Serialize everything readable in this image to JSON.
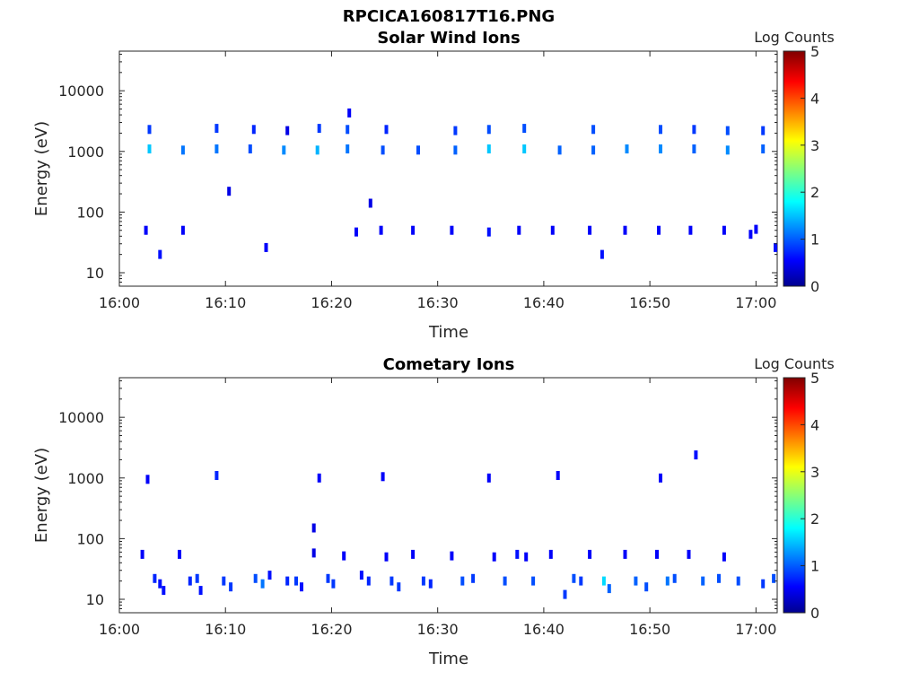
{
  "figure_title": "RPCICA160817T16.PNG",
  "chart_data": [
    {
      "type": "heatmap",
      "title": "Solar Wind Ions",
      "xlabel": "Time",
      "ylabel": "Energy (eV)",
      "y_scale": "log",
      "ylim": [
        6,
        45000
      ],
      "xlim": [
        "16:00",
        "17:02"
      ],
      "x_ticks": [
        "16:00",
        "16:10",
        "16:20",
        "16:30",
        "16:40",
        "16:50",
        "17:00"
      ],
      "y_ticks": [
        "10",
        "100",
        "1000",
        "10000"
      ],
      "colorbar": {
        "label": "Log Counts",
        "ticks": [
          "0",
          "1",
          "2",
          "3",
          "4",
          "5"
        ],
        "range": [
          0,
          5
        ],
        "colormap": "jet"
      },
      "grid": false,
      "points": [
        {
          "t": "16:02:50",
          "e": 1100,
          "v": 1.6
        },
        {
          "t": "16:02:50",
          "e": 2300,
          "v": 0.9
        },
        {
          "t": "16:02:30",
          "e": 50,
          "v": 0.6
        },
        {
          "t": "16:03:50",
          "e": 20,
          "v": 0.7
        },
        {
          "t": "16:06:00",
          "e": 1050,
          "v": 1.2
        },
        {
          "t": "16:06:00",
          "e": 50,
          "v": 0.6
        },
        {
          "t": "16:09:10",
          "e": 1100,
          "v": 1.2
        },
        {
          "t": "16:09:10",
          "e": 2400,
          "v": 0.9
        },
        {
          "t": "16:10:20",
          "e": 220,
          "v": 0.5
        },
        {
          "t": "16:12:20",
          "e": 1100,
          "v": 1.0
        },
        {
          "t": "16:12:40",
          "e": 2300,
          "v": 0.8
        },
        {
          "t": "16:13:50",
          "e": 26,
          "v": 0.6
        },
        {
          "t": "16:15:30",
          "e": 1050,
          "v": 1.3
        },
        {
          "t": "16:15:50",
          "e": 2200,
          "v": 0.5
        },
        {
          "t": "16:18:40",
          "e": 1050,
          "v": 1.5
        },
        {
          "t": "16:18:50",
          "e": 2400,
          "v": 0.9
        },
        {
          "t": "16:21:30",
          "e": 1100,
          "v": 1.2
        },
        {
          "t": "16:21:30",
          "e": 2300,
          "v": 1.0
        },
        {
          "t": "16:21:40",
          "e": 4300,
          "v": 0.6
        },
        {
          "t": "16:22:20",
          "e": 47,
          "v": 0.6
        },
        {
          "t": "16:23:40",
          "e": 140,
          "v": 0.5
        },
        {
          "t": "16:24:50",
          "e": 1050,
          "v": 1.0
        },
        {
          "t": "16:25:10",
          "e": 2300,
          "v": 0.8
        },
        {
          "t": "16:24:40",
          "e": 50,
          "v": 0.6
        },
        {
          "t": "16:27:40",
          "e": 50,
          "v": 0.6
        },
        {
          "t": "16:28:10",
          "e": 1050,
          "v": 1.0
        },
        {
          "t": "16:31:20",
          "e": 50,
          "v": 0.6
        },
        {
          "t": "16:31:40",
          "e": 1050,
          "v": 1.1
        },
        {
          "t": "16:31:40",
          "e": 2200,
          "v": 0.9
        },
        {
          "t": "16:34:50",
          "e": 1100,
          "v": 1.6
        },
        {
          "t": "16:34:50",
          "e": 2300,
          "v": 1.0
        },
        {
          "t": "16:34:50",
          "e": 47,
          "v": 0.7
        },
        {
          "t": "16:37:40",
          "e": 50,
          "v": 0.6
        },
        {
          "t": "16:38:10",
          "e": 1100,
          "v": 1.6
        },
        {
          "t": "16:38:10",
          "e": 2400,
          "v": 1.0
        },
        {
          "t": "16:40:50",
          "e": 50,
          "v": 0.6
        },
        {
          "t": "16:41:30",
          "e": 1050,
          "v": 1.1
        },
        {
          "t": "16:44:20",
          "e": 50,
          "v": 0.6
        },
        {
          "t": "16:44:40",
          "e": 1050,
          "v": 1.1
        },
        {
          "t": "16:44:40",
          "e": 2300,
          "v": 1.0
        },
        {
          "t": "16:45:30",
          "e": 20,
          "v": 0.7
        },
        {
          "t": "16:47:40",
          "e": 50,
          "v": 0.6
        },
        {
          "t": "16:47:50",
          "e": 1100,
          "v": 1.3
        },
        {
          "t": "16:50:50",
          "e": 50,
          "v": 0.6
        },
        {
          "t": "16:51:00",
          "e": 1100,
          "v": 1.3
        },
        {
          "t": "16:51:00",
          "e": 2300,
          "v": 1.0
        },
        {
          "t": "16:53:50",
          "e": 50,
          "v": 0.6
        },
        {
          "t": "16:54:10",
          "e": 1100,
          "v": 1.1
        },
        {
          "t": "16:54:10",
          "e": 2300,
          "v": 0.9
        },
        {
          "t": "16:57:00",
          "e": 50,
          "v": 0.6
        },
        {
          "t": "16:57:20",
          "e": 1050,
          "v": 1.3
        },
        {
          "t": "16:57:20",
          "e": 2200,
          "v": 1.0
        },
        {
          "t": "16:59:30",
          "e": 43,
          "v": 0.6
        },
        {
          "t": "17:00:00",
          "e": 52,
          "v": 0.6
        },
        {
          "t": "17:00:40",
          "e": 1100,
          "v": 1.1
        },
        {
          "t": "17:00:40",
          "e": 2200,
          "v": 0.9
        },
        {
          "t": "17:01:50",
          "e": 26,
          "v": 0.7
        }
      ]
    },
    {
      "type": "heatmap",
      "title": "Cometary Ions",
      "xlabel": "Time",
      "ylabel": "Energy (eV)",
      "y_scale": "log",
      "ylim": [
        6,
        45000
      ],
      "xlim": [
        "16:00",
        "17:02"
      ],
      "x_ticks": [
        "16:00",
        "16:10",
        "16:20",
        "16:30",
        "16:40",
        "16:50",
        "17:00"
      ],
      "y_ticks": [
        "10",
        "100",
        "1000",
        "10000"
      ],
      "colorbar": {
        "label": "Log Counts",
        "ticks": [
          "0",
          "1",
          "2",
          "3",
          "4",
          "5"
        ],
        "range": [
          0,
          5
        ],
        "colormap": "jet"
      },
      "grid": false,
      "points": [
        {
          "t": "16:02:10",
          "e": 55,
          "v": 0.6
        },
        {
          "t": "16:02:40",
          "e": 950,
          "v": 0.6
        },
        {
          "t": "16:03:20",
          "e": 22,
          "v": 0.8
        },
        {
          "t": "16:03:50",
          "e": 18,
          "v": 0.7
        },
        {
          "t": "16:04:10",
          "e": 14,
          "v": 0.7
        },
        {
          "t": "16:05:40",
          "e": 55,
          "v": 0.6
        },
        {
          "t": "16:06:40",
          "e": 20,
          "v": 0.8
        },
        {
          "t": "16:07:20",
          "e": 22,
          "v": 0.9
        },
        {
          "t": "16:07:40",
          "e": 14,
          "v": 0.7
        },
        {
          "t": "16:09:10",
          "e": 1100,
          "v": 0.8
        },
        {
          "t": "16:09:50",
          "e": 20,
          "v": 0.9
        },
        {
          "t": "16:10:30",
          "e": 16,
          "v": 0.9
        },
        {
          "t": "16:12:50",
          "e": 22,
          "v": 1.0
        },
        {
          "t": "16:13:30",
          "e": 18,
          "v": 1.2
        },
        {
          "t": "16:14:10",
          "e": 25,
          "v": 0.7
        },
        {
          "t": "16:15:50",
          "e": 20,
          "v": 0.8
        },
        {
          "t": "16:16:40",
          "e": 20,
          "v": 0.9
        },
        {
          "t": "16:17:10",
          "e": 16,
          "v": 0.7
        },
        {
          "t": "16:18:20",
          "e": 150,
          "v": 0.5
        },
        {
          "t": "16:18:20",
          "e": 58,
          "v": 0.5
        },
        {
          "t": "16:18:50",
          "e": 1000,
          "v": 0.6
        },
        {
          "t": "16:19:40",
          "e": 22,
          "v": 0.9
        },
        {
          "t": "16:20:10",
          "e": 18,
          "v": 0.9
        },
        {
          "t": "16:21:10",
          "e": 52,
          "v": 0.6
        },
        {
          "t": "16:22:50",
          "e": 25,
          "v": 0.7
        },
        {
          "t": "16:23:30",
          "e": 20,
          "v": 0.8
        },
        {
          "t": "16:24:50",
          "e": 1050,
          "v": 0.6
        },
        {
          "t": "16:25:10",
          "e": 50,
          "v": 0.6
        },
        {
          "t": "16:25:40",
          "e": 20,
          "v": 0.9
        },
        {
          "t": "16:26:20",
          "e": 16,
          "v": 0.9
        },
        {
          "t": "16:27:40",
          "e": 55,
          "v": 0.6
        },
        {
          "t": "16:28:40",
          "e": 20,
          "v": 0.9
        },
        {
          "t": "16:29:20",
          "e": 18,
          "v": 0.8
        },
        {
          "t": "16:31:20",
          "e": 52,
          "v": 0.6
        },
        {
          "t": "16:32:20",
          "e": 20,
          "v": 1.0
        },
        {
          "t": "16:33:20",
          "e": 22,
          "v": 0.9
        },
        {
          "t": "16:34:50",
          "e": 1000,
          "v": 0.6
        },
        {
          "t": "16:35:20",
          "e": 50,
          "v": 0.6
        },
        {
          "t": "16:36:20",
          "e": 20,
          "v": 1.0
        },
        {
          "t": "16:37:30",
          "e": 55,
          "v": 0.7
        },
        {
          "t": "16:38:20",
          "e": 50,
          "v": 0.6
        },
        {
          "t": "16:39:00",
          "e": 20,
          "v": 1.0
        },
        {
          "t": "16:40:40",
          "e": 55,
          "v": 0.6
        },
        {
          "t": "16:41:20",
          "e": 1100,
          "v": 0.6
        },
        {
          "t": "16:42:00",
          "e": 12,
          "v": 0.9
        },
        {
          "t": "16:42:50",
          "e": 22,
          "v": 1.0
        },
        {
          "t": "16:43:30",
          "e": 20,
          "v": 0.9
        },
        {
          "t": "16:44:20",
          "e": 55,
          "v": 0.6
        },
        {
          "t": "16:45:40",
          "e": 20,
          "v": 1.7
        },
        {
          "t": "16:46:10",
          "e": 15,
          "v": 1.1
        },
        {
          "t": "16:47:40",
          "e": 55,
          "v": 0.6
        },
        {
          "t": "16:48:40",
          "e": 20,
          "v": 1.1
        },
        {
          "t": "16:49:40",
          "e": 16,
          "v": 1.0
        },
        {
          "t": "16:50:40",
          "e": 55,
          "v": 0.6
        },
        {
          "t": "16:51:00",
          "e": 1000,
          "v": 0.6
        },
        {
          "t": "16:51:40",
          "e": 20,
          "v": 1.2
        },
        {
          "t": "16:52:20",
          "e": 22,
          "v": 1.0
        },
        {
          "t": "16:53:40",
          "e": 55,
          "v": 0.6
        },
        {
          "t": "16:54:20",
          "e": 2400,
          "v": 0.7
        },
        {
          "t": "16:55:00",
          "e": 20,
          "v": 1.1
        },
        {
          "t": "16:56:30",
          "e": 22,
          "v": 1.0
        },
        {
          "t": "16:57:00",
          "e": 50,
          "v": 0.6
        },
        {
          "t": "16:58:20",
          "e": 20,
          "v": 1.0
        },
        {
          "t": "17:00:40",
          "e": 18,
          "v": 0.9
        },
        {
          "t": "17:01:40",
          "e": 22,
          "v": 1.0
        }
      ]
    }
  ]
}
